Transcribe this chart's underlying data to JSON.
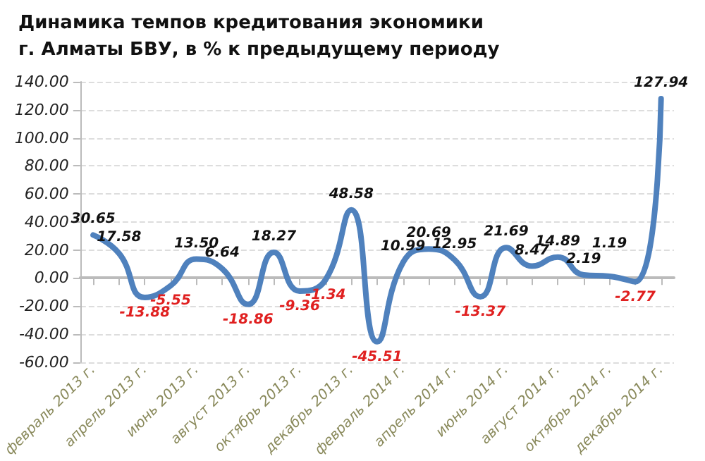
{
  "chart_data": {
    "type": "line",
    "title": "Динамика темпов кредитования экономики\nг. Алматы БВУ, в % к предыдущему периоду",
    "categories": [
      "февраль 2013 г.",
      null,
      "апрель 2013 г.",
      null,
      "июнь 2013 г.",
      null,
      "август 2013 г.",
      null,
      "октябрь 2013 г.",
      null,
      "декабрь 2013 г.",
      null,
      "февраль 2014 г.",
      null,
      "апрель 2014 г.",
      null,
      "июнь 2014 г.",
      null,
      "август 2014 г.",
      null,
      "октябрь 2014 г.",
      null,
      "декабрь 2014 г."
    ],
    "series": [
      {
        "color": "#4f81bd",
        "values": [
          30.65,
          17.58,
          -13.88,
          -5.55,
          13.5,
          6.64,
          -18.86,
          18.27,
          -9.36,
          -1.34,
          48.58,
          -45.51,
          10.99,
          20.69,
          12.95,
          -13.37,
          21.69,
          8.47,
          14.89,
          2.19,
          1.19,
          -2.77,
          127.94
        ],
        "value_labels": [
          "30.65",
          "17.58",
          "-13.88",
          "-5.55",
          "13.50",
          "6.64",
          "-18.86",
          "18.27",
          "-9.36",
          "-1.34",
          "48.58",
          "-45.51",
          "10.99",
          "20.69",
          "12.95",
          "-13.37",
          "21.69",
          "8.47",
          "14.89",
          "2.19",
          "1.19",
          "-2.77",
          "127.94"
        ]
      }
    ],
    "ylim": [
      -60,
      140
    ],
    "yticks": [
      {
        "value": -60,
        "label": "-60.00"
      },
      {
        "value": -40,
        "label": "-40.00"
      },
      {
        "value": -20,
        "label": "-20.00"
      },
      {
        "value": 0,
        "label": "0.00"
      },
      {
        "value": 20,
        "label": "20.00"
      },
      {
        "value": 40,
        "label": "40.00"
      },
      {
        "value": 60,
        "label": "60.00"
      },
      {
        "value": 80,
        "label": "80.00"
      },
      {
        "value": 100,
        "label": "100.00"
      },
      {
        "value": 120,
        "label": "120.00"
      },
      {
        "value": 140,
        "label": "140.00"
      }
    ],
    "grid": "y",
    "marker": "none",
    "line_style": "solid"
  }
}
